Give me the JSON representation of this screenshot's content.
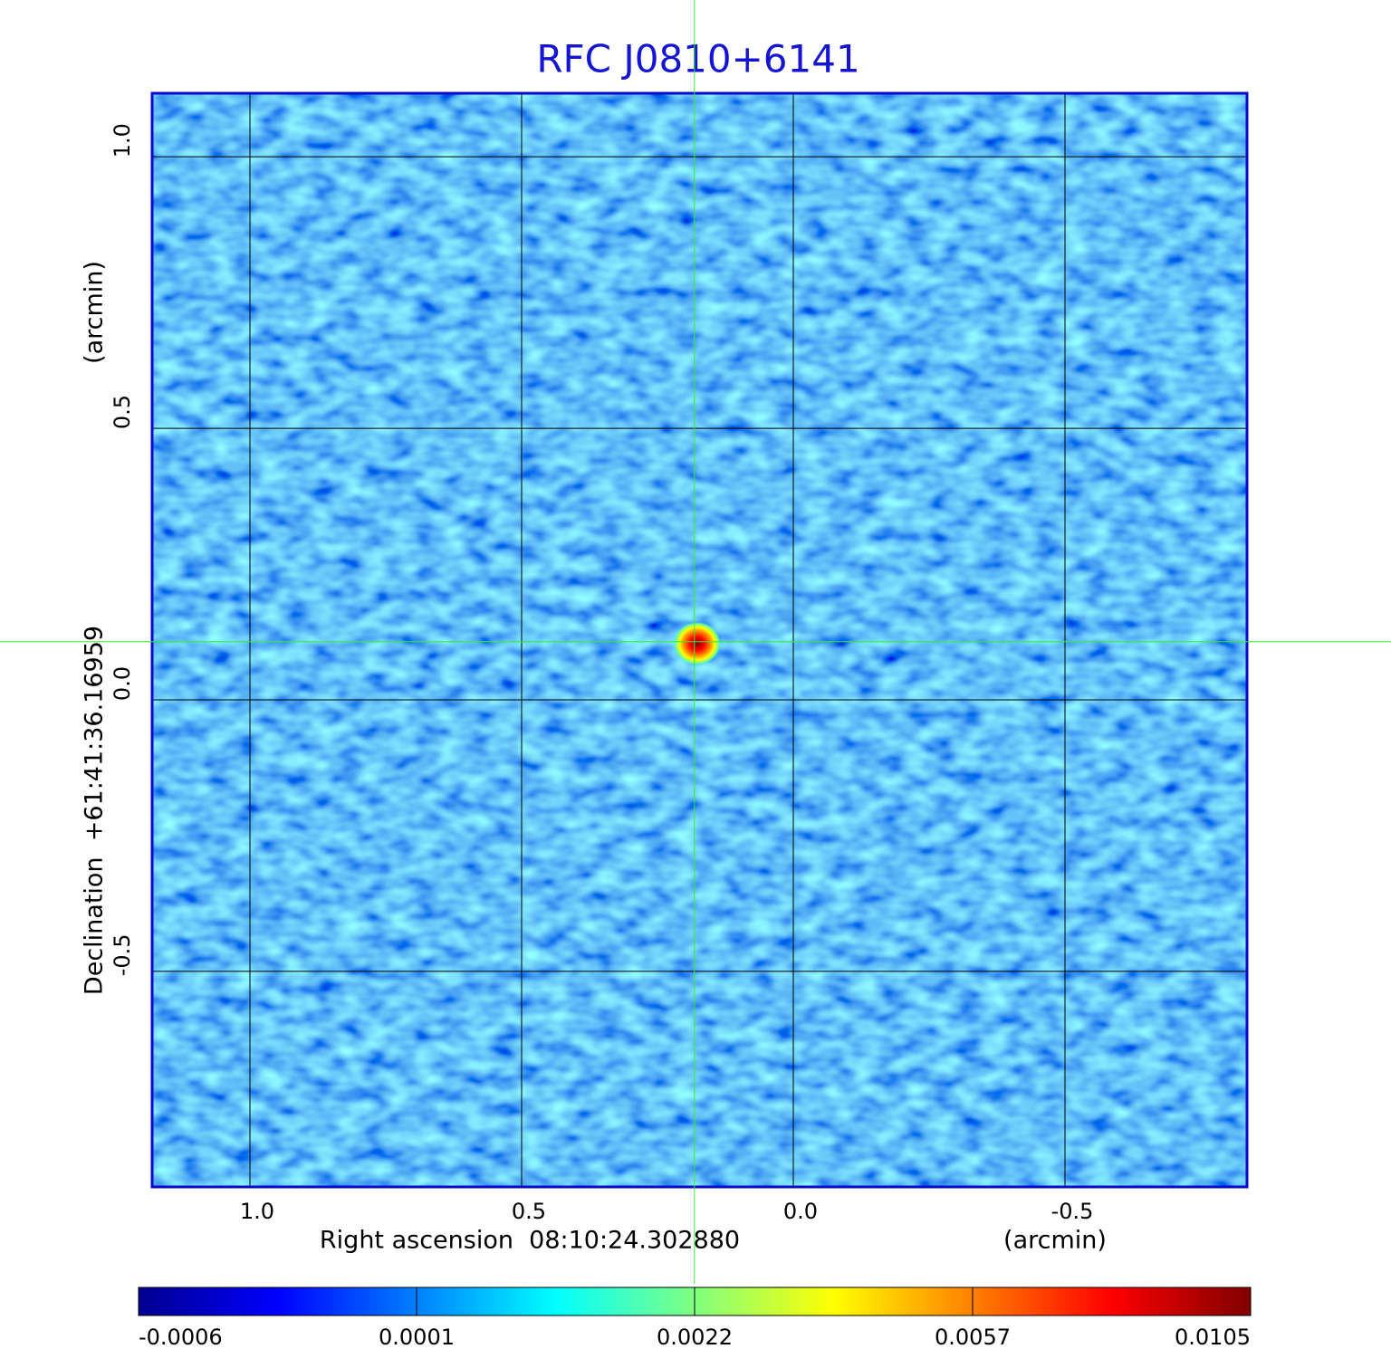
{
  "chart_data": {
    "type": "image",
    "title": "RFC J0810+6141",
    "x_label": "Right ascension  08:10:24.302880",
    "x_unit": "(arcmin)",
    "y_label": "Declination  +61:41:36.16959",
    "y_unit": "(arcmin)",
    "xlim": [
      1.18,
      -0.835
    ],
    "ylim": [
      -0.897,
      1.117
    ],
    "xticks": [
      {
        "value": 1,
        "label": "1.0"
      },
      {
        "value": 0.5,
        "label": "0.5"
      },
      {
        "value": 0,
        "label": "0.0"
      },
      {
        "value": -0.5,
        "label": "-0.5"
      }
    ],
    "yticks": [
      {
        "value": 1,
        "label": "1.0"
      },
      {
        "value": 0.5,
        "label": "0.5"
      },
      {
        "value": 0,
        "label": "0.0"
      },
      {
        "value": -0.5,
        "label": "-0.5"
      }
    ],
    "grid": true,
    "source": {
      "x": 0.182,
      "y": 0.107
    },
    "colorbar_ticks": [
      -0.0006,
      0.0001,
      0.0022,
      0.0057,
      0.0105
    ],
    "colormap": [
      "#00008f",
      "#0000ff",
      "#0080ff",
      "#00ffff",
      "#80ff80",
      "#ffff00",
      "#ff8000",
      "#ff0000",
      "#800000"
    ],
    "title_color": "#1414d2",
    "frame_color": "#0a0acc",
    "crosshair_color": "#33ee33"
  }
}
